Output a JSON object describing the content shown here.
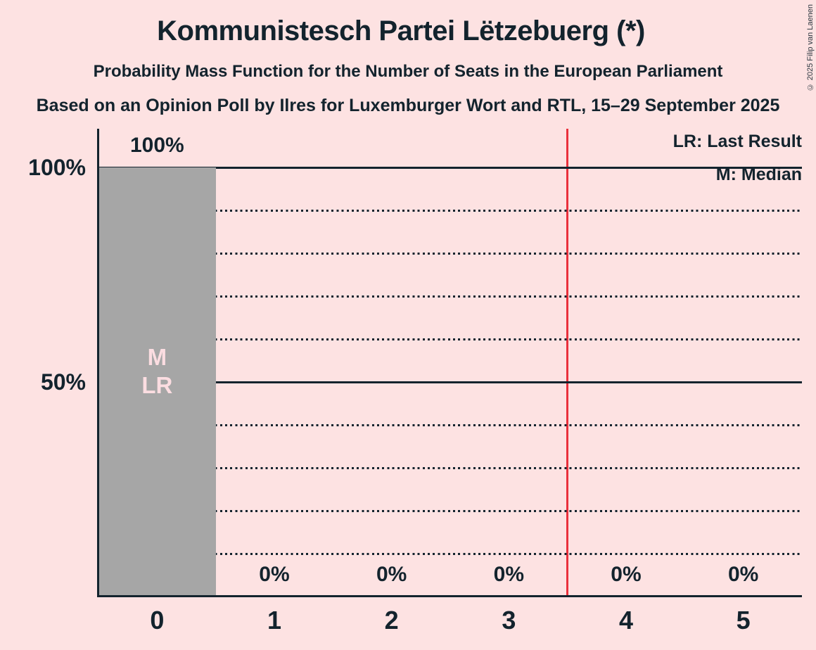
{
  "header": {
    "title": "Kommunistesch Partei Lëtzebuerg (*)",
    "subtitle": "Probability Mass Function for the Number of Seats in the European Parliament",
    "source_line": "Based on an Opinion Poll by Ilres for Luxemburger Wort and RTL, 15–29 September 2025",
    "copyright": "© 2025 Filip van Laenen"
  },
  "legend": {
    "lr": "LR: Last Result",
    "m": "M: Median"
  },
  "colors": {
    "background": "#fde2e2",
    "ink": "#13232d",
    "bar": "#a6a6a6",
    "bar_label_text": "#fbdde1",
    "majority_line": "#ea303c"
  },
  "chart_data": {
    "type": "bar",
    "title": "Kommunistesch Partei Lëtzebuerg (*)",
    "xlabel": "",
    "ylabel": "",
    "categories": [
      "0",
      "1",
      "2",
      "3",
      "4",
      "5"
    ],
    "values": [
      100,
      0,
      0,
      0,
      0,
      0
    ],
    "bar_labels": [
      "100%",
      "0%",
      "0%",
      "0%",
      "0%",
      "0%"
    ],
    "y_tick_labels": [
      "100%",
      "50%"
    ],
    "ylim": [
      0,
      100
    ],
    "gridlines_solid_pct": [
      100,
      50
    ],
    "gridlines_dotted_pct": [
      90,
      80,
      70,
      60,
      40,
      30,
      20,
      10
    ],
    "majority_line_seats": 3.5,
    "bar_inner_labels": {
      "bar_index": 0,
      "lines": [
        "M",
        "LR"
      ]
    },
    "legend_position": "top-right",
    "grid": "horizontal-only"
  }
}
